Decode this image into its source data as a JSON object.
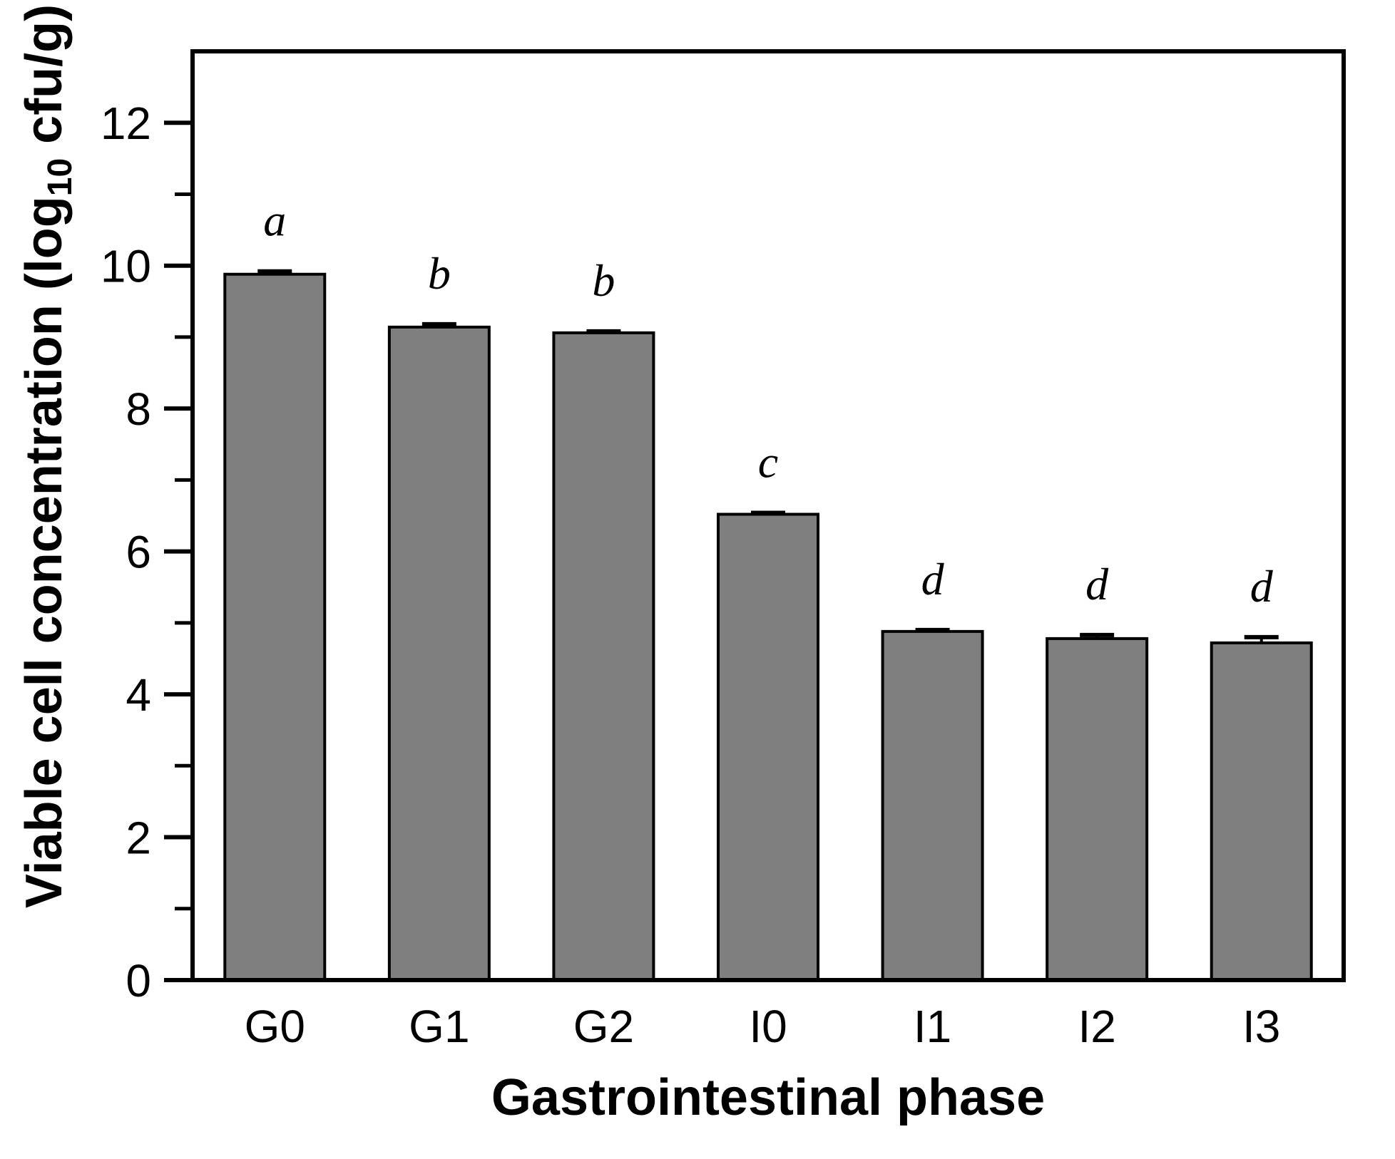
{
  "chart_data": {
    "type": "bar",
    "title": "",
    "categories": [
      "G0",
      "G1",
      "G2",
      "I0",
      "I1",
      "I2",
      "I3"
    ],
    "values": [
      9.88,
      9.14,
      9.06,
      6.52,
      4.88,
      4.78,
      4.72
    ],
    "errors": [
      0.04,
      0.04,
      0.02,
      0.02,
      0.02,
      0.05,
      0.08
    ],
    "sig_letters": [
      "a",
      "b",
      "b",
      "c",
      "d",
      "d",
      "d"
    ],
    "xlabel": "Gastrointestinal phase",
    "ylabel": "Viable cell concentration (log10 cfu/g)",
    "ylabel_parts": {
      "prefix": "Viable cell concentration (log",
      "sub": "10",
      "suffix": " cfu/g)"
    },
    "ylim": [
      0,
      13
    ],
    "ytick_major": [
      0,
      2,
      4,
      6,
      8,
      10,
      12
    ],
    "ytick_minor": [
      1,
      3,
      5,
      7,
      9,
      11
    ],
    "ytick_labels": [
      "0",
      "2",
      "4",
      "6",
      "8",
      "10",
      "12"
    ],
    "grid": false,
    "legend": null,
    "colors": {
      "bar_fill": "#7f7f7f",
      "bar_edge": "#000000",
      "axis": "#000000",
      "background": "#ffffff",
      "text": "#000000"
    }
  }
}
